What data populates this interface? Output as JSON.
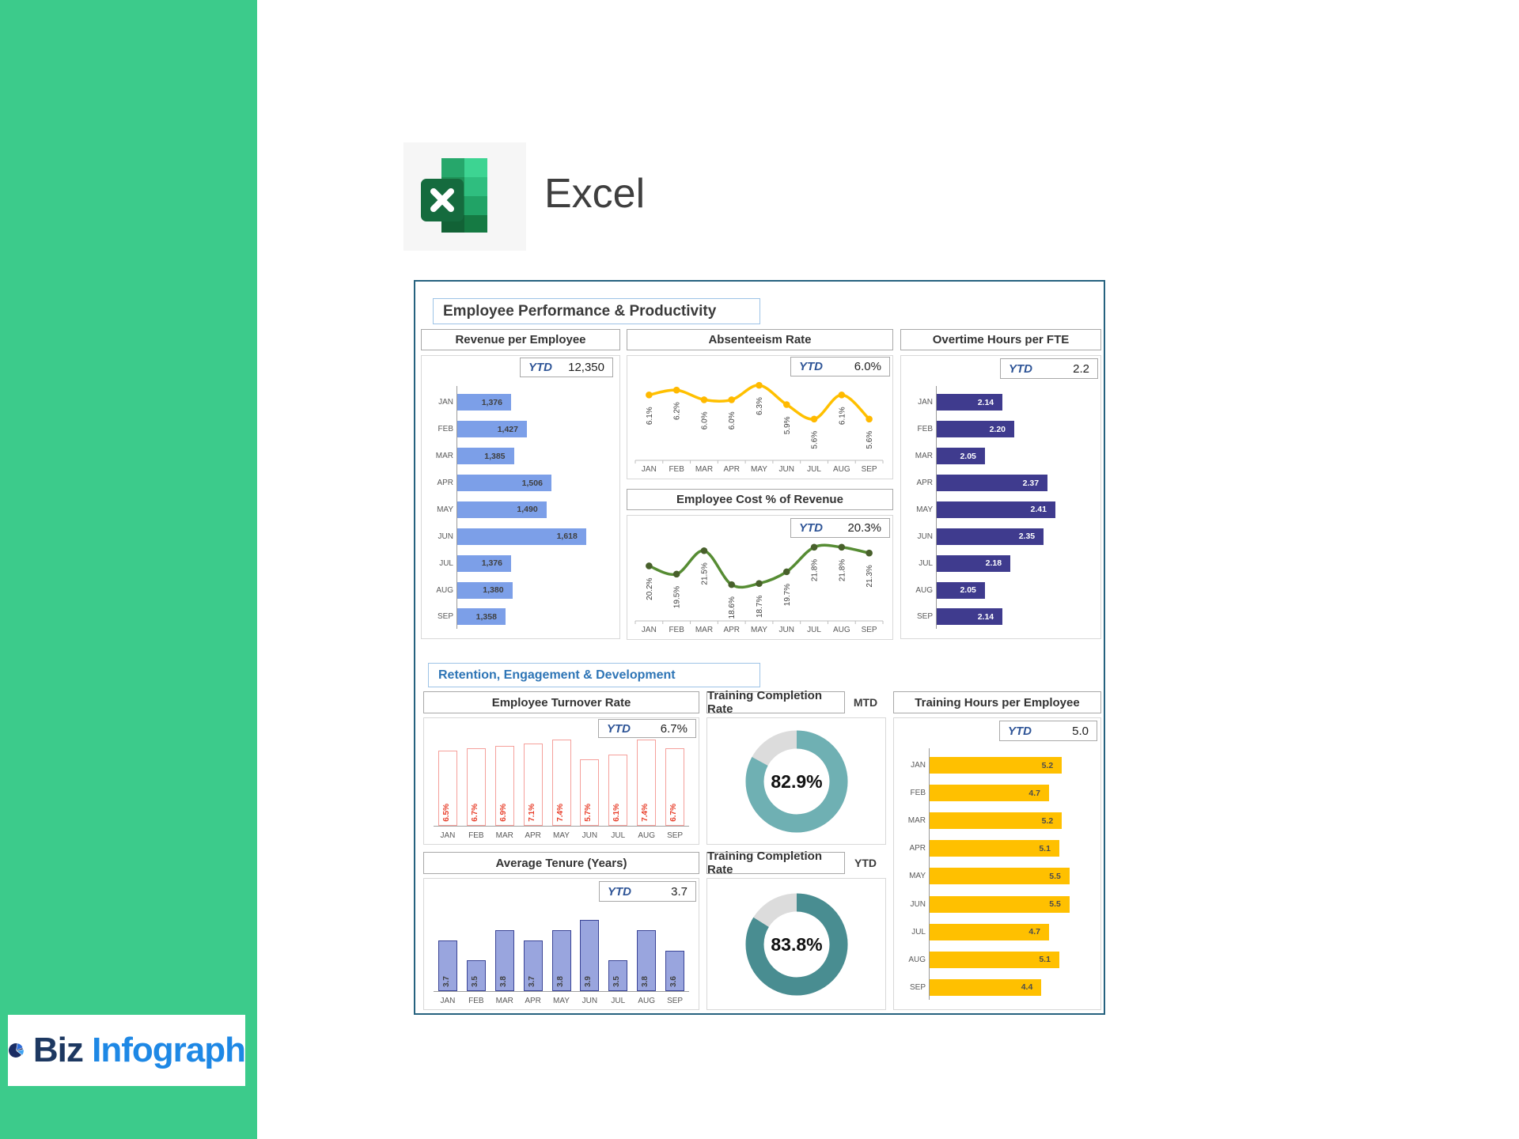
{
  "app": {
    "name": "Excel"
  },
  "brand": {
    "left": "Biz",
    "right": "Infograph"
  },
  "colors": {
    "sidebar": "#3CCB8B",
    "panel_border": "#26627F",
    "kpi_blue": "#2F5597",
    "section2_title_blue": "#2E75B6"
  },
  "dashboard": {
    "section1_title": "Employee Performance & Productivity",
    "section2_title": "Retention, Engagement & Development"
  },
  "chart_data": [
    {
      "id": "revenue",
      "type": "bar",
      "orientation": "horizontal",
      "title": "Revenue per Employee",
      "kpi": {
        "label": "YTD",
        "value": "12,350"
      },
      "categories": [
        "JAN",
        "FEB",
        "MAR",
        "APR",
        "MAY",
        "JUN",
        "JUL",
        "AUG",
        "SEP"
      ],
      "values": [
        1376,
        1427,
        1385,
        1506,
        1490,
        1618,
        1376,
        1380,
        1358
      ],
      "value_labels": [
        "1,376",
        "1,427",
        "1,385",
        "1,506",
        "1,490",
        "1,618",
        "1,376",
        "1,380",
        "1,358"
      ],
      "xlim": [
        1200,
        1700
      ],
      "bar_color": "#7C9FE8",
      "label_color": "#3F3F3F"
    },
    {
      "id": "absenteeism",
      "type": "line",
      "title": "Absenteeism Rate",
      "kpi": {
        "label": "YTD",
        "value": "6.0%"
      },
      "categories": [
        "JAN",
        "FEB",
        "MAR",
        "APR",
        "MAY",
        "JUN",
        "JUL",
        "AUG",
        "SEP"
      ],
      "values": [
        6.1,
        6.2,
        6.0,
        6.0,
        6.3,
        5.9,
        5.6,
        6.1,
        5.6
      ],
      "value_labels": [
        "6.1%",
        "6.2%",
        "6.0%",
        "6.0%",
        "6.3%",
        "5.9%",
        "5.6%",
        "6.1%",
        "5.6%"
      ],
      "ylim": [
        5.35,
        6.45
      ],
      "line_color": "#FFC000",
      "marker_color": "#FFB900",
      "label_color": "#404040"
    },
    {
      "id": "cost",
      "type": "line",
      "title": "Employee Cost % of Revenue",
      "kpi": {
        "label": "YTD",
        "value": "20.3%"
      },
      "categories": [
        "JAN",
        "FEB",
        "MAR",
        "APR",
        "MAY",
        "JUN",
        "JUL",
        "AUG",
        "SEP"
      ],
      "values": [
        20.2,
        19.5,
        21.5,
        18.6,
        18.7,
        19.7,
        21.8,
        21.8,
        21.3
      ],
      "value_labels": [
        "20.2%",
        "19.5%",
        "21.5%",
        "18.6%",
        "18.7%",
        "19.7%",
        "21.8%",
        "21.8%",
        "21.3%"
      ],
      "ylim": [
        18.0,
        22.6
      ],
      "line_color": "#568C33",
      "marker_color": "#48602B",
      "label_color": "#404040"
    },
    {
      "id": "overtime",
      "type": "bar",
      "orientation": "horizontal",
      "title": "Overtime Hours per FTE",
      "kpi": {
        "label": "YTD",
        "value": "2.2"
      },
      "categories": [
        "JAN",
        "FEB",
        "MAR",
        "APR",
        "MAY",
        "JUN",
        "JUL",
        "AUG",
        "SEP"
      ],
      "values": [
        2.14,
        2.2,
        2.05,
        2.37,
        2.41,
        2.35,
        2.18,
        2.05,
        2.14
      ],
      "value_labels": [
        "2.14",
        "2.20",
        "2.05",
        "2.37",
        "2.41",
        "2.35",
        "2.18",
        "2.05",
        "2.14"
      ],
      "xlim": [
        1.8,
        2.6
      ],
      "bar_color": "#3F3B8E",
      "label_color": "#FFFFFF"
    },
    {
      "id": "turnover",
      "type": "bar",
      "orientation": "vertical",
      "title": "Employee Turnover Rate",
      "kpi": {
        "label": "YTD",
        "value": "6.7%"
      },
      "categories": [
        "JAN",
        "FEB",
        "MAR",
        "APR",
        "MAY",
        "JUN",
        "JUL",
        "AUG",
        "SEP"
      ],
      "values": [
        6.5,
        6.7,
        6.9,
        7.1,
        7.4,
        5.7,
        6.1,
        7.4,
        6.7
      ],
      "value_labels": [
        "6.5%",
        "6.7%",
        "6.9%",
        "7.1%",
        "7.4%",
        "5.7%",
        "6.1%",
        "7.4%",
        "6.7%"
      ],
      "ylim": [
        0,
        7.9
      ],
      "bar_fill": "#FFFFFF",
      "bar_border": "#F5A09B",
      "label_color": "#E8402C"
    },
    {
      "id": "completion_mtd",
      "type": "pie",
      "title": "Training Completion Rate",
      "badge": "MTD",
      "value": 82.9,
      "center_label": "82.9%",
      "color": "#6FB0B3",
      "track_color": "#DCDCDC"
    },
    {
      "id": "training_hours",
      "type": "bar",
      "orientation": "horizontal",
      "title": "Training Hours per Employee",
      "kpi": {
        "label": "YTD",
        "value": "5.0"
      },
      "categories": [
        "JAN",
        "FEB",
        "MAR",
        "APR",
        "MAY",
        "JUN",
        "JUL",
        "AUG",
        "SEP"
      ],
      "values": [
        5.2,
        4.7,
        5.2,
        5.1,
        5.5,
        5.5,
        4.7,
        5.1,
        4.4
      ],
      "value_labels": [
        "5.2",
        "4.7",
        "5.2",
        "5.1",
        "5.5",
        "5.5",
        "4.7",
        "5.1",
        "4.4"
      ],
      "xlim": [
        0,
        6.4
      ],
      "bar_color": "#FFC000",
      "label_color": "#4D4D4D"
    },
    {
      "id": "tenure",
      "type": "bar",
      "orientation": "vertical",
      "title": "Average Tenure (Years)",
      "kpi": {
        "label": "YTD",
        "value": "3.7"
      },
      "categories": [
        "JAN",
        "FEB",
        "MAR",
        "APR",
        "MAY",
        "JUN",
        "JUL",
        "AUG",
        "SEP"
      ],
      "values": [
        3.7,
        3.5,
        3.8,
        3.7,
        3.8,
        3.9,
        3.5,
        3.8,
        3.6
      ],
      "value_labels": [
        "3.7",
        "3.5",
        "3.8",
        "3.7",
        "3.8",
        "3.9",
        "3.5",
        "3.8",
        "3.6"
      ],
      "ylim": [
        3.2,
        4.15
      ],
      "bar_fill": "#99A5DE",
      "bar_border": "#3A4496",
      "label_color": "#3F3F3F"
    },
    {
      "id": "completion_ytd",
      "type": "pie",
      "title": "Training Completion Rate",
      "badge": "YTD",
      "value": 83.8,
      "center_label": "83.8%",
      "color": "#498D91",
      "track_color": "#DCDCDC"
    }
  ]
}
